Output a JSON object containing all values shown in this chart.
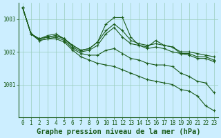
{
  "x": [
    0,
    1,
    2,
    3,
    4,
    5,
    6,
    7,
    8,
    9,
    10,
    11,
    12,
    13,
    14,
    15,
    16,
    17,
    18,
    19,
    20,
    21,
    22,
    23
  ],
  "series1": [
    1003.35,
    1002.55,
    1002.4,
    1002.45,
    1002.5,
    1002.4,
    1002.2,
    1002.05,
    1002.1,
    1002.3,
    1002.65,
    1002.85,
    1002.65,
    1002.35,
    1002.25,
    1002.2,
    1002.25,
    1002.2,
    1002.15,
    1002.0,
    1002.0,
    1001.95,
    1001.9,
    1001.85
  ],
  "series2": [
    1003.35,
    1002.55,
    1002.4,
    1002.45,
    1002.5,
    1002.4,
    1002.2,
    1002.05,
    1002.1,
    1002.3,
    1002.85,
    1003.05,
    1003.05,
    1002.45,
    1002.2,
    1002.15,
    1002.35,
    1002.2,
    1002.15,
    1001.95,
    1001.95,
    1001.85,
    1001.85,
    1001.75
  ],
  "series3": [
    1003.35,
    1002.55,
    1002.4,
    1002.5,
    1002.55,
    1002.4,
    1002.15,
    1002.0,
    1002.05,
    1002.2,
    1002.55,
    1002.75,
    1002.45,
    1002.25,
    1002.2,
    1002.1,
    1002.15,
    1002.1,
    1002.0,
    1001.95,
    1001.9,
    1001.8,
    1001.8,
    1001.7
  ],
  "series4": [
    1003.35,
    1002.55,
    1002.35,
    1002.4,
    1002.45,
    1002.35,
    1002.1,
    1001.95,
    1001.9,
    1001.9,
    1002.05,
    1002.1,
    1001.95,
    1001.8,
    1001.75,
    1001.65,
    1001.6,
    1001.6,
    1001.55,
    1001.35,
    1001.25,
    1001.1,
    1001.05,
    1000.75
  ],
  "series5": [
    1003.35,
    1002.55,
    1002.35,
    1002.4,
    1002.4,
    1002.3,
    1002.05,
    1001.85,
    1001.75,
    1001.65,
    1001.6,
    1001.55,
    1001.45,
    1001.35,
    1001.25,
    1001.15,
    1001.1,
    1001.05,
    1001.0,
    1000.85,
    1000.8,
    1000.65,
    1000.35,
    1000.2
  ],
  "bg_color": "#cceeff",
  "grid_color": "#99ccbb",
  "line_color": "#1a5c1a",
  "xlabel": "Graphe pression niveau de la mer (hPa)",
  "xlabel_fontsize": 7.5,
  "tick_fontsize": 5.5,
  "ylim": [
    1000.0,
    1003.5
  ],
  "yticks": [
    1001,
    1002,
    1003
  ],
  "xticks": [
    0,
    1,
    2,
    3,
    4,
    5,
    6,
    7,
    8,
    9,
    10,
    11,
    12,
    13,
    14,
    15,
    16,
    17,
    18,
    19,
    20,
    21,
    22,
    23
  ]
}
